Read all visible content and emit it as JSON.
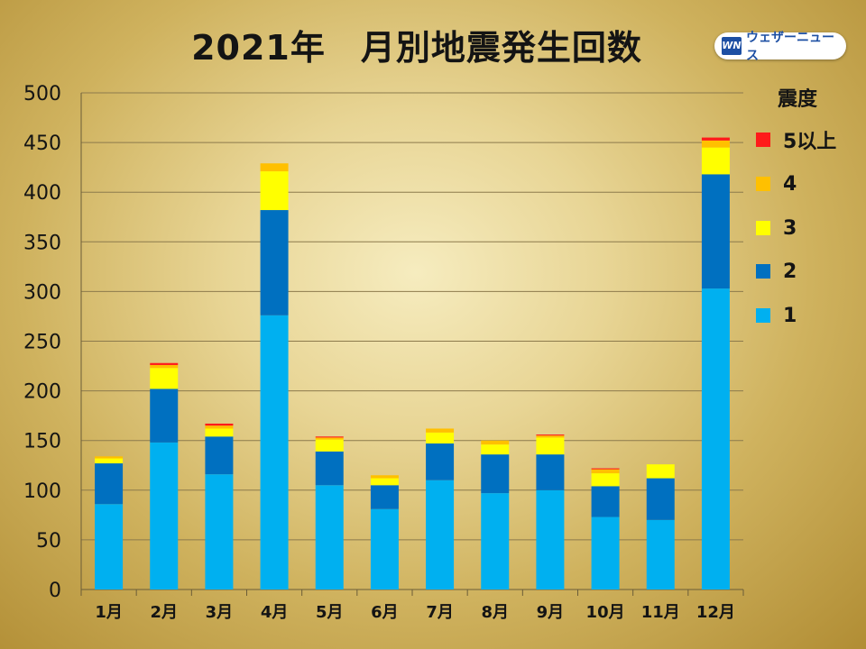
{
  "header": {
    "title": "2021年　月別地震発生回数",
    "logo_mark": "WN",
    "logo_text": "ウェザーニュース"
  },
  "legend": {
    "title": "震度",
    "items": [
      {
        "label": "5以上",
        "color": "#ff1a1a"
      },
      {
        "label": "4",
        "color": "#ffc000"
      },
      {
        "label": "3",
        "color": "#ffff00"
      },
      {
        "label": "2",
        "color": "#0070c0"
      },
      {
        "label": "1",
        "color": "#00b0f0"
      }
    ]
  },
  "chart_data": {
    "type": "bar",
    "stacked": true,
    "title": "2021年　月別地震発生回数",
    "xlabel": "",
    "ylabel": "",
    "ylim": [
      0,
      500
    ],
    "yticks": [
      0,
      50,
      100,
      150,
      200,
      250,
      300,
      350,
      400,
      450,
      500
    ],
    "grid": true,
    "legend_position": "right",
    "legend_title": "震度",
    "categories": [
      "1月",
      "2月",
      "3月",
      "4月",
      "5月",
      "6月",
      "7月",
      "8月",
      "9月",
      "10月",
      "11月",
      "12月"
    ],
    "series": [
      {
        "name": "1",
        "color": "#00b0f0",
        "values": [
          86,
          148,
          116,
          276,
          105,
          81,
          110,
          97,
          100,
          73,
          70,
          303
        ]
      },
      {
        "name": "2",
        "color": "#0070c0",
        "values": [
          41,
          54,
          38,
          106,
          34,
          24,
          37,
          39,
          36,
          31,
          42,
          115
        ]
      },
      {
        "name": "3",
        "color": "#ffff00",
        "values": [
          5,
          21,
          8,
          39,
          12,
          7,
          11,
          10,
          17,
          13,
          14,
          27
        ]
      },
      {
        "name": "4",
        "color": "#ffc000",
        "values": [
          2,
          3,
          3,
          8,
          2,
          3,
          4,
          4,
          2,
          4,
          0,
          7
        ]
      },
      {
        "name": "5以上",
        "color": "#ff1a1a",
        "values": [
          0,
          2,
          2,
          0,
          1,
          0,
          0,
          0,
          1,
          1,
          0,
          3
        ]
      }
    ]
  }
}
